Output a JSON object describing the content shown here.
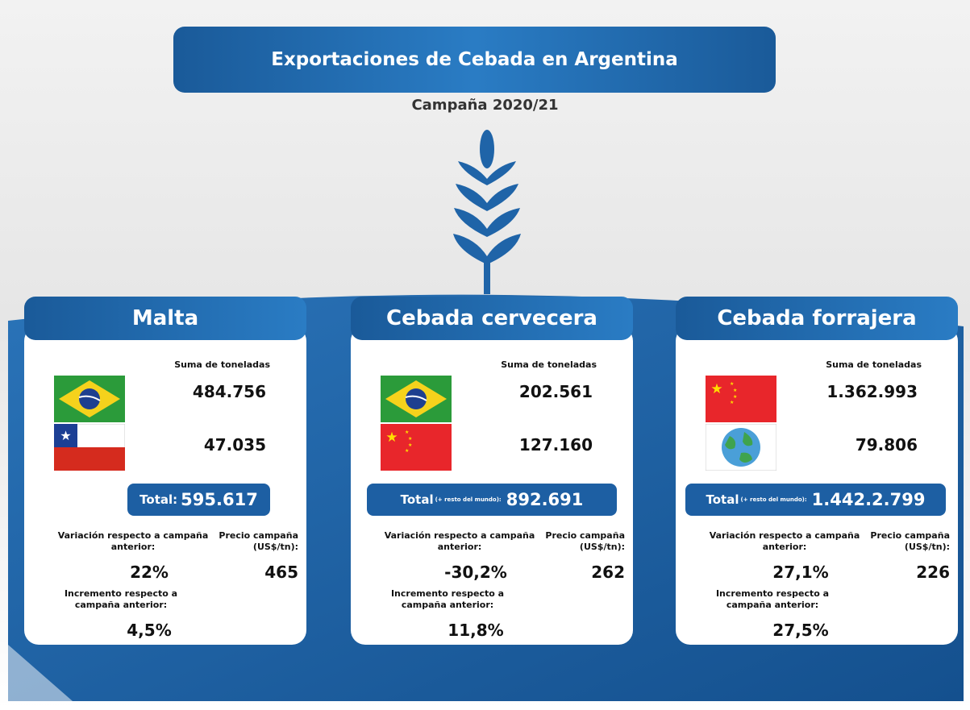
{
  "header": {
    "title": "Exportaciones de Cebada en Argentina",
    "subtitle": "Campaña 2020/21"
  },
  "cards": [
    {
      "title": "Malta",
      "tons_label": "Suma de toneladas",
      "rows": [
        "484.756",
        "47.035"
      ],
      "total_label": "Total:",
      "total_value": "595.617",
      "variation_label": "Variación respecto a campaña anterior:",
      "variation_value": "22%",
      "price_label": "Precio campaña (US$/tn):",
      "price_value": "465",
      "increment_label": "Incremento respecto a campaña anterior:",
      "increment_value": "4,5%"
    },
    {
      "title": "Cebada cervecera",
      "tons_label": "Suma de toneladas",
      "rows": [
        "202.561",
        "127.160"
      ],
      "total_label": "Total",
      "total_note": "(+ resto del mundo):",
      "total_value": "892.691",
      "variation_label": "Variación respecto a campaña anterior:",
      "variation_value": "-30,2%",
      "price_label": "Precio campaña (US$/tn):",
      "price_value": "262",
      "increment_label": "Incremento respecto a campaña anterior:",
      "increment_value": "11,8%"
    },
    {
      "title": "Cebada forrajera",
      "tons_label": "Suma de toneladas",
      "rows": [
        "1.362.993",
        "79.806"
      ],
      "total_label": "Total",
      "total_note": "(+ resto del mundo):",
      "total_value": "1.442.2.799",
      "variation_label": "Variación respecto a campaña anterior:",
      "variation_value": "27,1%",
      "price_label": "Precio campaña (US$/tn):",
      "price_value": "226",
      "increment_label": "Incremento respecto a campaña anterior:",
      "increment_value": "27,5%"
    }
  ]
}
